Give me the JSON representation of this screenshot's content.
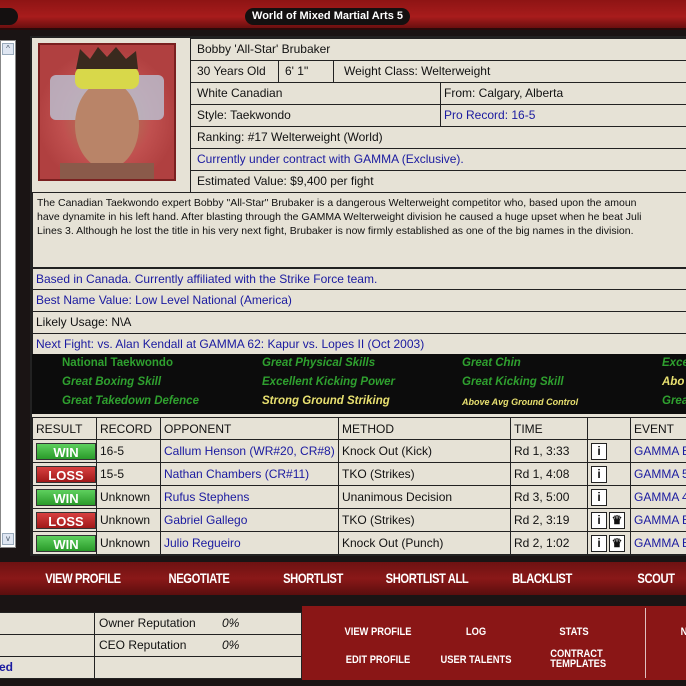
{
  "window": {
    "title": "World of Mixed Martial Arts 5"
  },
  "fighter": {
    "name": "Bobby 'All-Star' Brubaker",
    "age": "30 Years Old",
    "height": "6' 1\"",
    "weight_class": "Weight Class: Welterweight",
    "nationality": "White Canadian",
    "from": "From: Calgary, Alberta",
    "style": "Style: Taekwondo",
    "pro_record": "Pro Record: 16-5",
    "ranking": "Ranking: #17 Welterweight (World)",
    "contract": "Currently under contract with GAMMA (Exclusive).",
    "value": "Estimated Value: $9,400 per fight",
    "bio": [
      "The Canadian Taekwondo expert Bobby \"All-Star\" Brubaker is a dangerous Welterweight competitor who, based upon the amoun",
      "have dynamite in his left hand. After blasting through the GAMMA Welterweight division he caused a huge upset when he beat Juli",
      "Lines 3. Although he lost the title in his very next fight, Brubaker is now firmly established as one of the big names in the division."
    ],
    "based": "Based in Canada. Currently affiliated with the Strike Force team.",
    "name_value": "Best Name Value: Low Level National (America)",
    "usage": "Likely Usage: N\\A",
    "next_fight": "Next Fight: vs. Alan Kendall at GAMMA 62: Kapur vs. Lopes II (Oct 2003)"
  },
  "skills": [
    {
      "text": "National Taekwondo",
      "color": "green",
      "italic": false
    },
    {
      "text": "Great Physical Skills",
      "color": "green"
    },
    {
      "text": "Great Chin",
      "color": "green"
    },
    {
      "text": "Exce",
      "color": "green"
    },
    {
      "text": "Great Boxing Skill",
      "color": "green"
    },
    {
      "text": "Excellent Kicking Power",
      "color": "green"
    },
    {
      "text": "Great Kicking Skill",
      "color": "green"
    },
    {
      "text": "Abo",
      "color": "yellow"
    },
    {
      "text": "Great Takedown Defence",
      "color": "green"
    },
    {
      "text": "Strong Ground Striking",
      "color": "yellow"
    },
    {
      "text": "Above Avg Ground Control",
      "color": "yellow-small"
    },
    {
      "text": "Grea",
      "color": "green"
    }
  ],
  "fights": {
    "headers": [
      "RESULT",
      "RECORD",
      "OPPONENT",
      "METHOD",
      "TIME",
      "",
      "EVENT"
    ],
    "rows": [
      {
        "result": "WIN",
        "record": "16-5",
        "opponent": "Callum Henson (WR#20, CR#8)",
        "method": "Knock Out (Kick)",
        "time": "Rd 1, 3:33",
        "title": false,
        "event": "GAMMA E"
      },
      {
        "result": "LOSS",
        "record": "15-5",
        "opponent": "Nathan Chambers (CR#11)",
        "method": "TKO (Strikes)",
        "time": "Rd 1, 4:08",
        "title": false,
        "event": "GAMMA 5"
      },
      {
        "result": "WIN",
        "record": "Unknown",
        "opponent": "Rufus Stephens",
        "method": "Unanimous Decision",
        "time": "Rd 3, 5:00",
        "title": false,
        "event": "GAMMA 4"
      },
      {
        "result": "LOSS",
        "record": "Unknown",
        "opponent": "Gabriel Gallego",
        "method": "TKO (Strikes)",
        "time": "Rd 2, 3:19",
        "title": true,
        "event": "GAMMA E"
      },
      {
        "result": "WIN",
        "record": "Unknown",
        "opponent": "Julio Regueiro",
        "method": "Knock Out (Punch)",
        "time": "Rd 2, 1:02",
        "title": true,
        "event": "GAMMA E"
      }
    ]
  },
  "actions": [
    "VIEW PROFILE",
    "NEGOTIATE",
    "SHORTLIST",
    "SHORTLIST ALL",
    "BLACKLIST",
    "SCOUT"
  ],
  "reputation": {
    "owner_label": "Owner Reputation",
    "owner_value": "0%",
    "ceo_label": "CEO Reputation",
    "ceo_value": "0%",
    "left_fragment": "ed"
  },
  "menu": {
    "view_profile": "VIEW PROFILE",
    "log": "LOG",
    "stats": "STATS",
    "edit_profile": "EDIT PROFILE",
    "user_talents": "USER TALENTS",
    "contract_templates": "CONTRACT TEMPLATES",
    "right_fragment": "N"
  },
  "colors": {
    "accent_red": "#8a1616",
    "win": "#2a9a2a",
    "loss": "#a01818",
    "link_blue": "#1a1aa0"
  }
}
